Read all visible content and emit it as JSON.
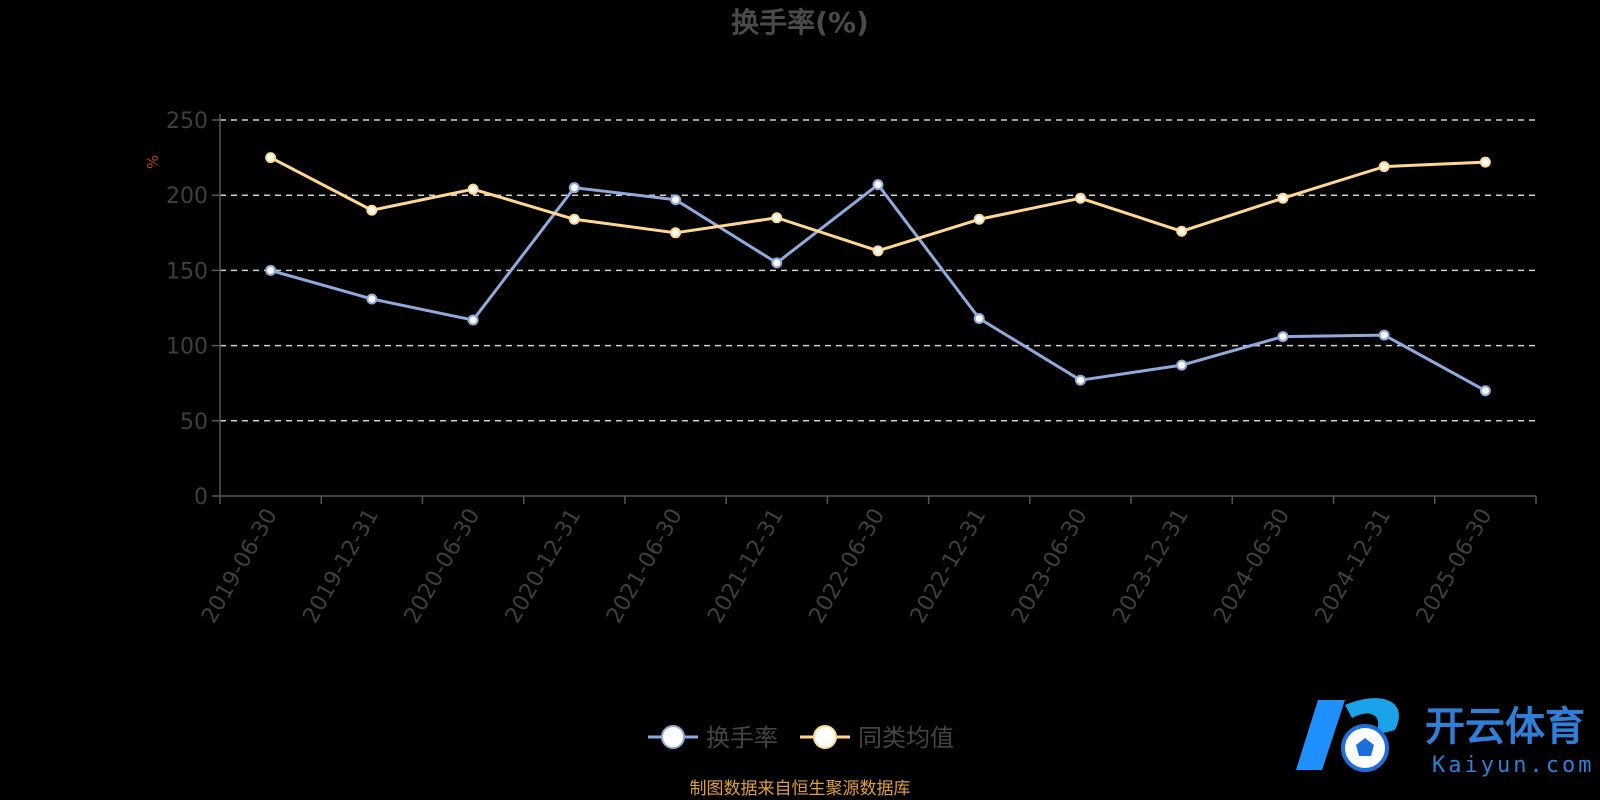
{
  "chart_data": {
    "type": "line",
    "title": "换手率(%)",
    "ylabel": "%",
    "ylim": [
      0,
      250
    ],
    "yticks": [
      0,
      50,
      100,
      150,
      200,
      250
    ],
    "grid": true,
    "legend_position": "bottom-center",
    "categories": [
      "2019-06-30",
      "2019-12-31",
      "2020-06-30",
      "2020-12-31",
      "2021-06-30",
      "2021-12-31",
      "2022-06-30",
      "2022-12-31",
      "2023-06-30",
      "2023-12-31",
      "2024-06-30",
      "2024-12-31",
      "2025-06-30"
    ],
    "series": [
      {
        "name": "换手率",
        "color": "#8faadc",
        "values": [
          150,
          131,
          117,
          205,
          197,
          155,
          207,
          118,
          77,
          87,
          106,
          107,
          70
        ]
      },
      {
        "name": "同类均值",
        "color": "#ffd890",
        "values": [
          225,
          190,
          204,
          184,
          175,
          185,
          163,
          184,
          198,
          176,
          198,
          219,
          222
        ]
      }
    ]
  },
  "source_note": "制图数据来自恒生聚源数据库",
  "watermark": {
    "cn": "开云体育",
    "en": "Kaiyun.com",
    "brand_color": "#2f7fd9"
  }
}
